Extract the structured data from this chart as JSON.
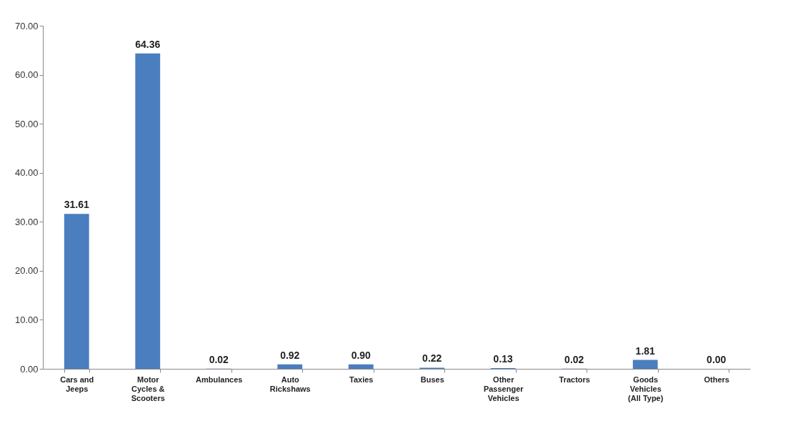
{
  "chart_data": {
    "type": "bar",
    "categories": [
      "Cars and Jeeps",
      "Motor Cycles & Scooters",
      "Ambulances",
      "Auto Rickshaws",
      "Taxies",
      "Buses",
      "Other Passenger Vehicles",
      "Tractors",
      "Goods Vehicles (All Type)",
      "Others"
    ],
    "values": [
      31.61,
      64.36,
      0.02,
      0.92,
      0.9,
      0.22,
      0.13,
      0.02,
      1.81,
      0.0
    ],
    "value_labels": [
      "31.61",
      "64.36",
      "0.02",
      "0.92",
      "0.90",
      "0.22",
      "0.13",
      "0.02",
      "1.81",
      "0.00"
    ],
    "color": "#4a7ebf",
    "ylim": [
      0,
      70
    ],
    "yticks": [
      {
        "value": 0,
        "label": "0.00"
      },
      {
        "value": 10,
        "label": "10.00"
      },
      {
        "value": 20,
        "label": "20.00"
      },
      {
        "value": 30,
        "label": "30.00"
      },
      {
        "value": 40,
        "label": "40.00"
      },
      {
        "value": 50,
        "label": "50.00"
      },
      {
        "value": 60,
        "label": "60.00"
      },
      {
        "value": 70,
        "label": "70.00"
      }
    ],
    "grid": false
  }
}
